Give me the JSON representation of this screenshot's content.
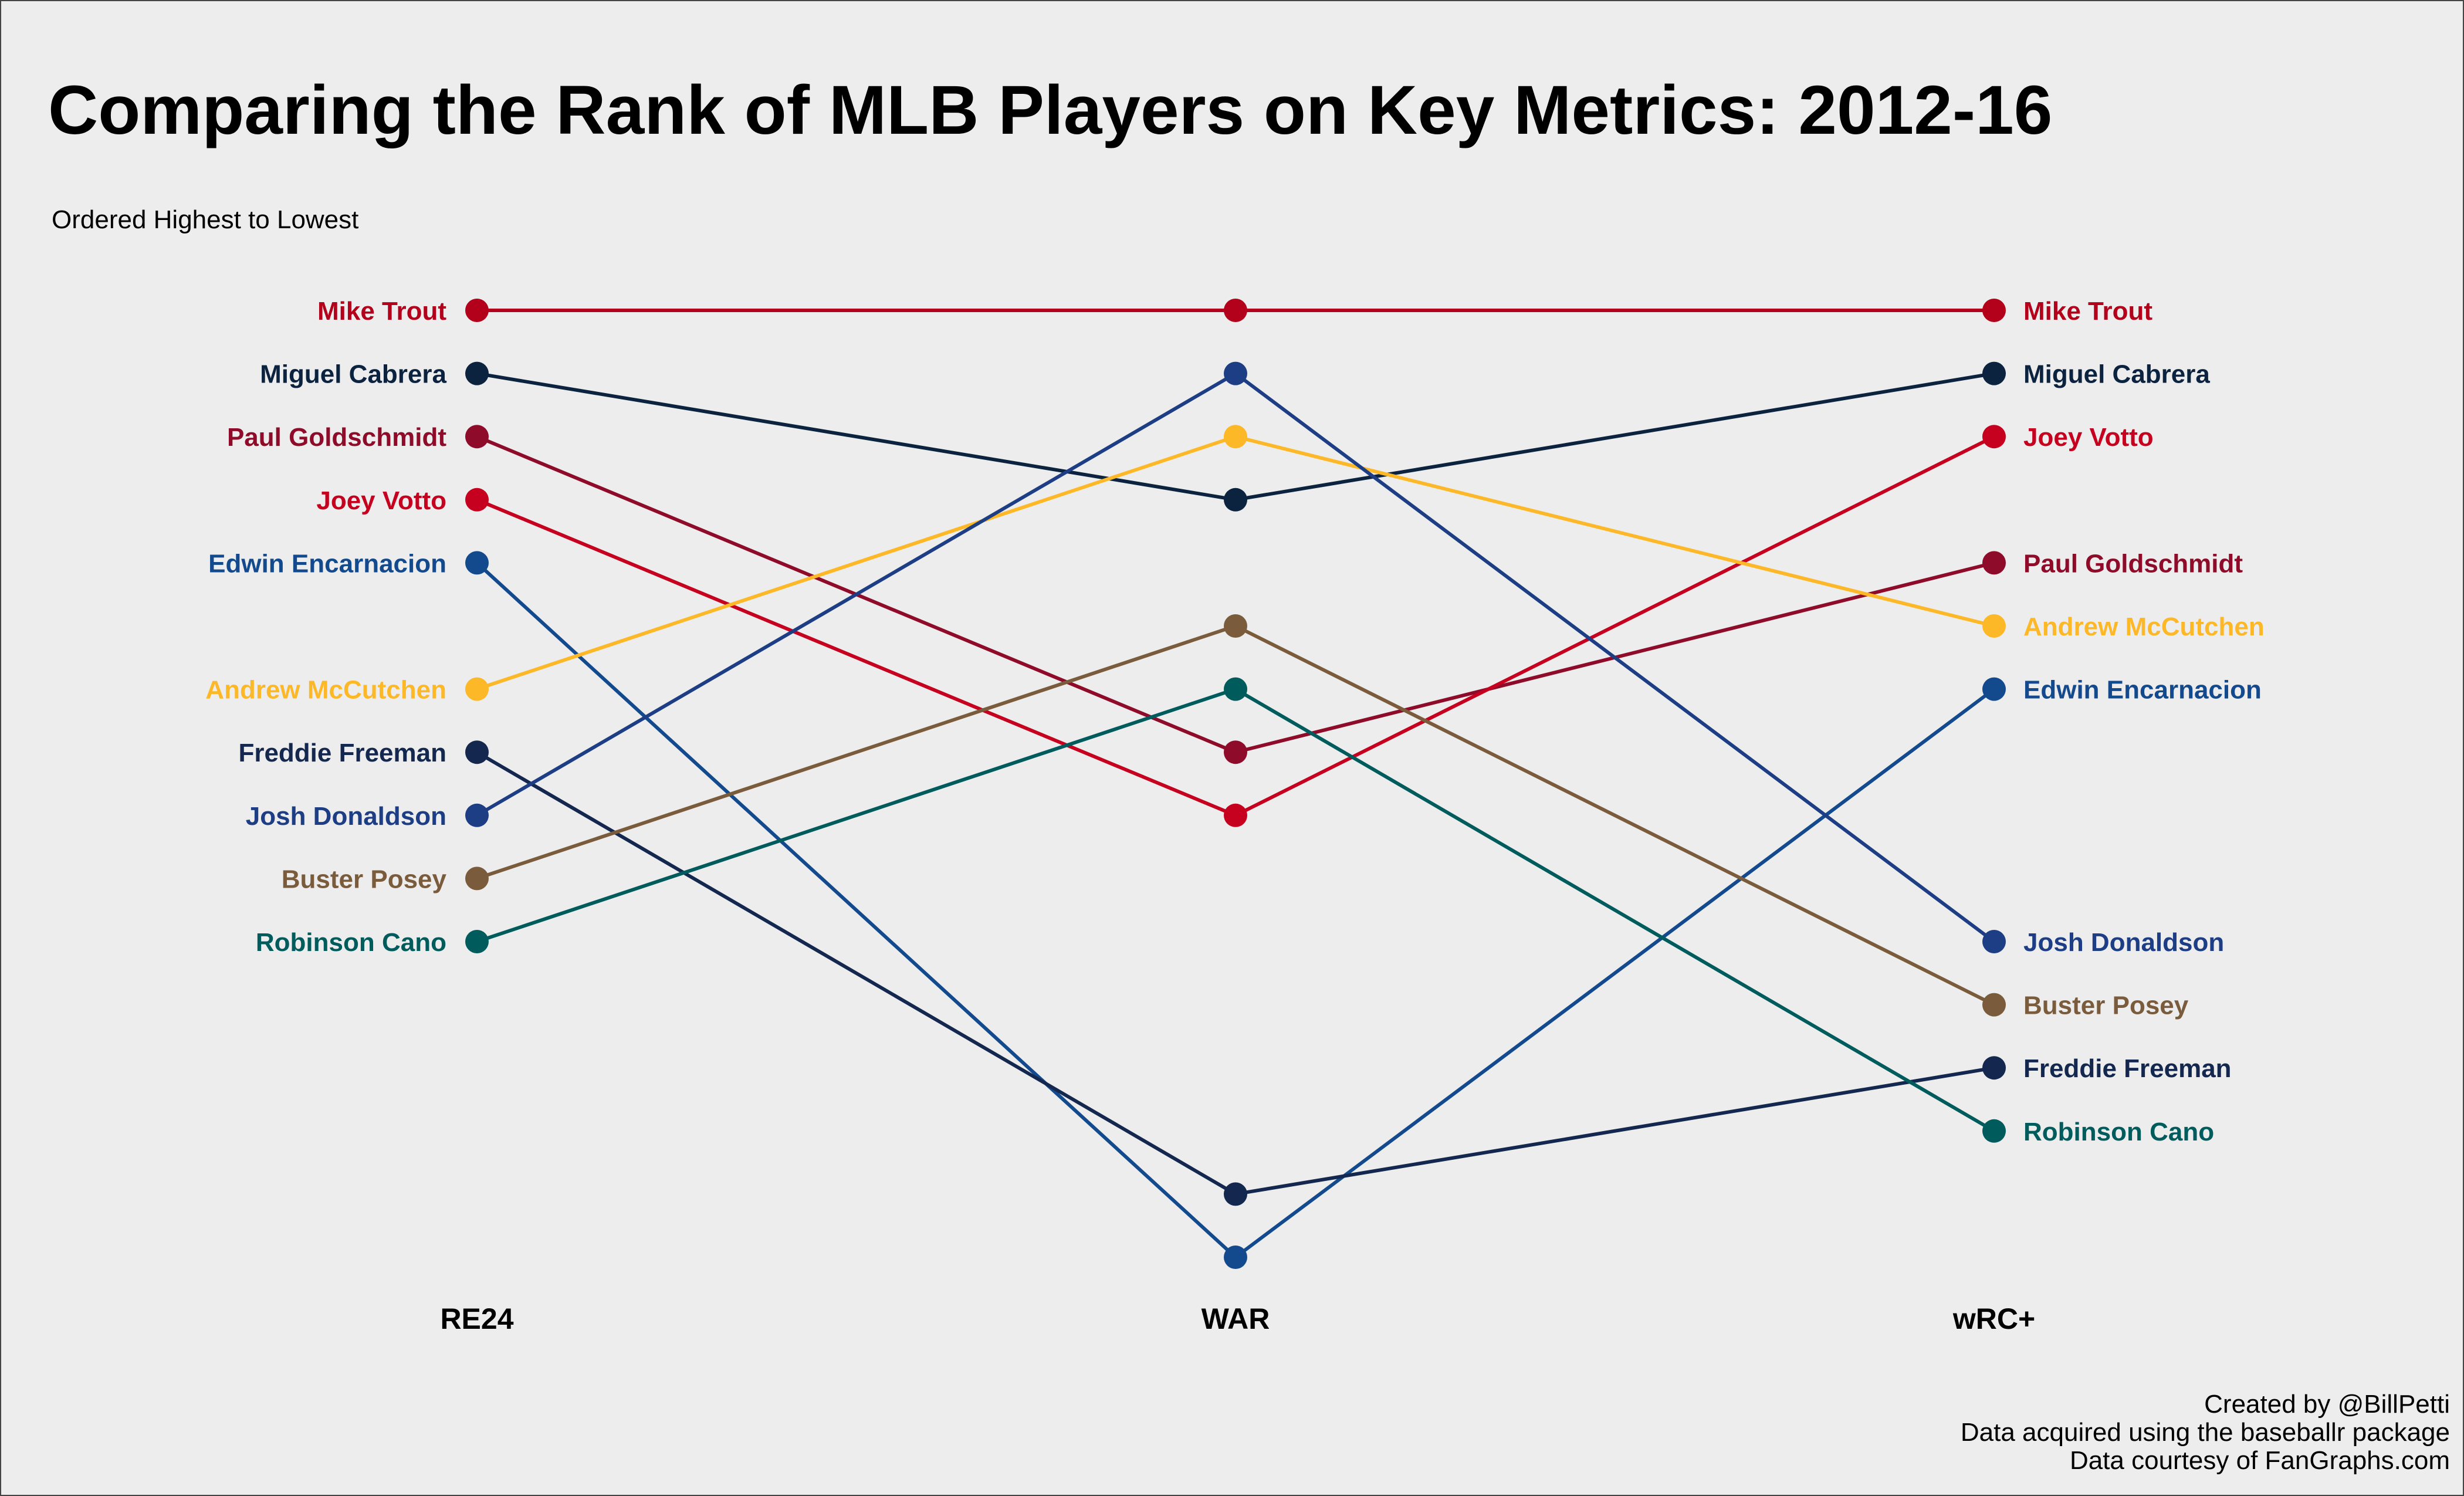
{
  "title": "Comparing the Rank of MLB Players on Key Metrics: 2012-16",
  "subtitle": "Ordered Highest to Lowest",
  "caption": [
    "Created by @BillPetti",
    "Data acquired using the baseballr package",
    "Data courtesy of FanGraphs.com"
  ],
  "chart_data": {
    "type": "line",
    "x": [
      "RE24",
      "WAR",
      "wRC+"
    ],
    "y_order": "rank ascending downward (1 = top)",
    "grid": false,
    "legend": "none (direct labels on left and right)",
    "series": [
      {
        "name": "Mike Trout",
        "color": "#B3001B",
        "ranks": [
          1,
          1,
          1
        ]
      },
      {
        "name": "Miguel Cabrera",
        "color": "#0C2340",
        "ranks": [
          2,
          4,
          2
        ]
      },
      {
        "name": "Paul Goldschmidt",
        "color": "#8E0C2A",
        "ranks": [
          3,
          8,
          5
        ]
      },
      {
        "name": "Joey Votto",
        "color": "#C6011F",
        "ranks": [
          4,
          9,
          3
        ]
      },
      {
        "name": "Edwin Encarnacion",
        "color": "#134A8E",
        "ranks": [
          5,
          16,
          7
        ]
      },
      {
        "name": "Andrew McCutchen",
        "color": "#FDB827",
        "ranks": [
          7,
          3,
          6
        ]
      },
      {
        "name": "Freddie Freeman",
        "color": "#13274F",
        "ranks": [
          8,
          15,
          13
        ]
      },
      {
        "name": "Josh Donaldson",
        "color": "#1D3D84",
        "ranks": [
          9,
          2,
          11
        ]
      },
      {
        "name": "Buster Posey",
        "color": "#7A5C3C",
        "ranks": [
          10,
          6,
          12
        ]
      },
      {
        "name": "Robinson Cano",
        "color": "#005C5C",
        "ranks": [
          11,
          7,
          14
        ]
      }
    ]
  }
}
